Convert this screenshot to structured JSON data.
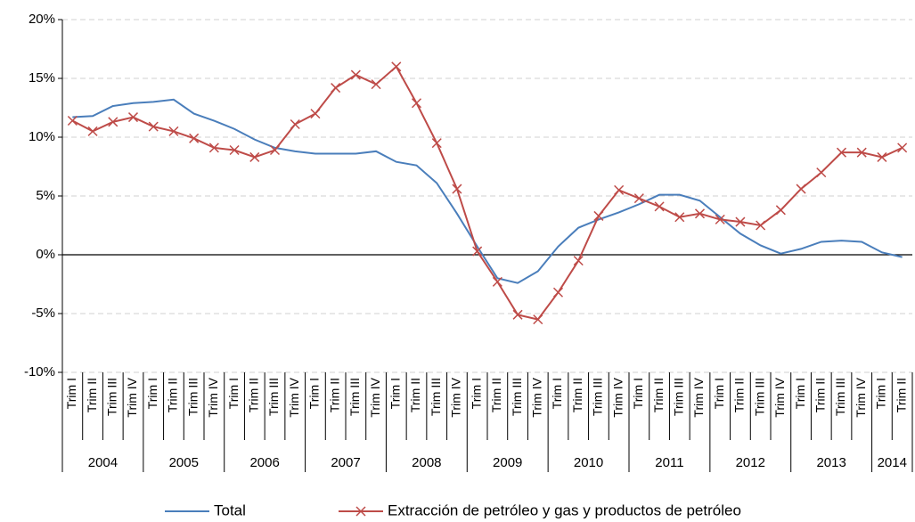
{
  "chart_data": {
    "type": "line",
    "categories": [
      "Trim I",
      "Trim II",
      "Trim III",
      "Trim IV",
      "Trim I",
      "Trim II",
      "Trim III",
      "Trim IV",
      "Trim I",
      "Trim II",
      "Trim III",
      "Trim IV",
      "Trim I",
      "Trim II",
      "Trim III",
      "Trim IV",
      "Trim I",
      "Trim II",
      "Trim III",
      "Trim IV",
      "Trim I",
      "Trim II",
      "Trim III",
      "Trim IV",
      "Trim I",
      "Trim II",
      "Trim III",
      "Trim IV",
      "Trim I",
      "Trim II",
      "Trim III",
      "Trim IV",
      "Trim I",
      "Trim II",
      "Trim III",
      "Trim IV",
      "Trim I",
      "Trim II",
      "Trim III",
      "Trim IV",
      "Trim I",
      "Trim II"
    ],
    "years": [
      "2004",
      "2005",
      "2006",
      "2007",
      "2008",
      "2009",
      "2010",
      "2011",
      "2012",
      "2013",
      "2014"
    ],
    "series": [
      {
        "name": "Total",
        "color": "#4a7ebb",
        "marker": "none",
        "values": [
          11.7,
          11.8,
          12.65,
          12.9,
          13.0,
          13.2,
          12.0,
          11.4,
          10.7,
          9.8,
          9.1,
          8.8,
          8.6,
          8.6,
          8.6,
          8.8,
          7.9,
          7.6,
          6.1,
          3.5,
          0.7,
          -2.0,
          -2.4,
          -1.4,
          0.7,
          2.3,
          3.0,
          3.6,
          4.3,
          5.1,
          5.1,
          4.6,
          3.2,
          1.8,
          0.8,
          0.1,
          0.5,
          1.1,
          1.2,
          1.1,
          0.2,
          -0.2
        ]
      },
      {
        "name": "Extracción de petróleo y gas y productos de petróleo",
        "color": "#be4b48",
        "marker": "x",
        "values": [
          11.4,
          10.5,
          11.3,
          11.7,
          10.9,
          10.5,
          9.9,
          9.1,
          8.9,
          8.3,
          8.9,
          11.1,
          12.0,
          14.2,
          15.3,
          14.5,
          16.0,
          12.9,
          9.5,
          5.6,
          0.3,
          -2.3,
          -5.1,
          -5.5,
          -3.2,
          -0.5,
          3.3,
          5.5,
          4.8,
          4.1,
          3.2,
          3.5,
          3.0,
          2.8,
          2.5,
          3.8,
          5.6,
          7.0,
          8.7,
          8.7,
          8.3,
          9.1
        ]
      }
    ],
    "ylim": [
      -10,
      20
    ],
    "yticks": [
      {
        "value": -10,
        "label": "-10%"
      },
      {
        "value": -5,
        "label": "-5%"
      },
      {
        "value": 0,
        "label": "0%"
      },
      {
        "value": 5,
        "label": "5%"
      },
      {
        "value": 10,
        "label": "10%"
      },
      {
        "value": 15,
        "label": "15%"
      },
      {
        "value": 20,
        "label": "20%"
      }
    ],
    "grid": true,
    "legend": "bottom"
  }
}
